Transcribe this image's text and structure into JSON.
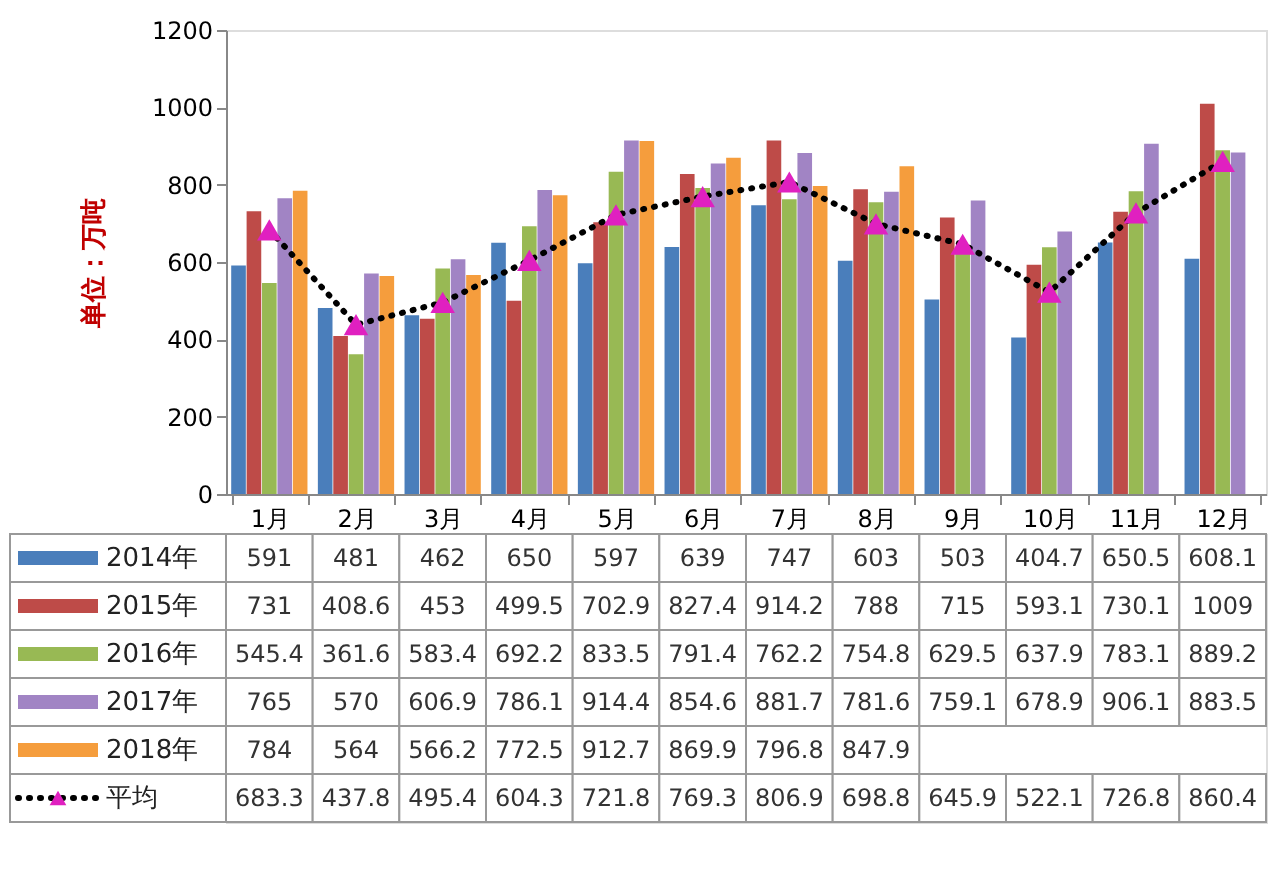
{
  "chart_data": {
    "type": "bar",
    "ylabel": "单位：万吨",
    "categories": [
      "1月",
      "2月",
      "3月",
      "4月",
      "5月",
      "6月",
      "7月",
      "8月",
      "9月",
      "10月",
      "11月",
      "12月"
    ],
    "series": [
      {
        "name": "2014年",
        "color": "#4a7ebb",
        "values": [
          591,
          481,
          462,
          650,
          597,
          639,
          747,
          603,
          503,
          404.7,
          650.5,
          608.1
        ]
      },
      {
        "name": "2015年",
        "color": "#be4b48",
        "values": [
          731,
          408.6,
          453,
          499.5,
          702.9,
          827.4,
          914.2,
          788,
          715,
          593.1,
          730.1,
          1009
        ]
      },
      {
        "name": "2016年",
        "color": "#98b954",
        "values": [
          545.4,
          361.6,
          583.4,
          692.2,
          833.5,
          791.4,
          762.2,
          754.8,
          629.5,
          637.9,
          783.1,
          889.2
        ]
      },
      {
        "name": "2017年",
        "color": "#a184c4",
        "values": [
          765,
          570,
          606.9,
          786.1,
          914.4,
          854.6,
          881.7,
          781.6,
          759.1,
          678.9,
          906.1,
          883.5
        ]
      },
      {
        "name": "2018年",
        "color": "#f59d3d",
        "values": [
          784,
          564,
          566.2,
          772.5,
          912.7,
          869.9,
          796.8,
          847.9,
          null,
          null,
          null,
          null
        ]
      },
      {
        "name": "平均",
        "type": "line",
        "color": "#000000",
        "marker": "triangle",
        "line_style": "dotted",
        "values": [
          683.3,
          437.8,
          495.4,
          604.3,
          721.8,
          769.3,
          806.9,
          698.8,
          645.9,
          522.1,
          726.8,
          860.4
        ]
      }
    ],
    "ylim": [
      0,
      1200
    ],
    "yticks": [
      0,
      200,
      400,
      600,
      800,
      1000,
      1200
    ],
    "data_labels": true,
    "legend": "bottom left"
  }
}
